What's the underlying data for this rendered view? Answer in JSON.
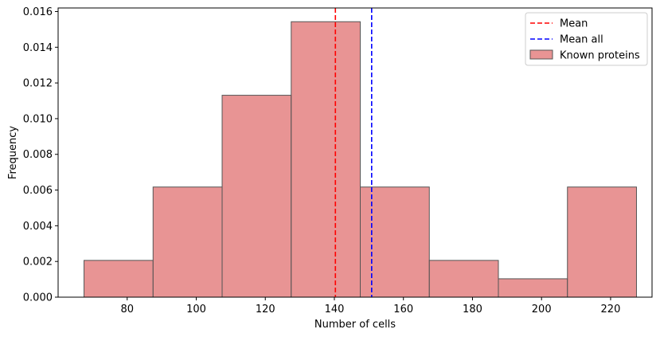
{
  "chart_data": {
    "type": "bar",
    "subtype": "histogram",
    "title": "",
    "xlabel": "Number of cells",
    "ylabel": "Frequency",
    "xlim": [
      60,
      232
    ],
    "ylim": [
      0,
      0.0162
    ],
    "x_ticks": [
      80,
      100,
      120,
      140,
      160,
      180,
      200,
      220
    ],
    "y_ticks": [
      0.0,
      0.002,
      0.004,
      0.006,
      0.008,
      0.01,
      0.012,
      0.014,
      0.016
    ],
    "y_tick_labels": [
      "0.000",
      "0.002",
      "0.004",
      "0.006",
      "0.008",
      "0.010",
      "0.012",
      "0.014",
      "0.016"
    ],
    "bins": [
      {
        "x0": 67.5,
        "x1": 87.5,
        "value": 0.00206
      },
      {
        "x0": 87.5,
        "x1": 107.5,
        "value": 0.00617
      },
      {
        "x0": 107.5,
        "x1": 127.5,
        "value": 0.01131
      },
      {
        "x0": 127.5,
        "x1": 147.5,
        "value": 0.01543
      },
      {
        "x0": 147.5,
        "x1": 167.5,
        "value": 0.00617
      },
      {
        "x0": 167.5,
        "x1": 187.5,
        "value": 0.00206
      },
      {
        "x0": 187.5,
        "x1": 207.5,
        "value": 0.00103
      },
      {
        "x0": 207.5,
        "x1": 227.5,
        "value": 0.00617
      }
    ],
    "vlines": [
      {
        "name": "Mean",
        "x": 140.3,
        "color": "#ff0000"
      },
      {
        "name": "Mean all",
        "x": 150.8,
        "color": "#0000ff"
      }
    ],
    "series": [
      {
        "name": "Known proteins",
        "color": "#e07070"
      }
    ],
    "legend": {
      "placement": "top-right",
      "entries": [
        {
          "label": "Mean",
          "kind": "dashed-line",
          "color": "#ff0000"
        },
        {
          "label": "Mean all",
          "kind": "dashed-line",
          "color": "#0000ff"
        },
        {
          "label": "Known proteins",
          "kind": "patch",
          "color": "#e07070"
        }
      ]
    },
    "grid": false
  }
}
